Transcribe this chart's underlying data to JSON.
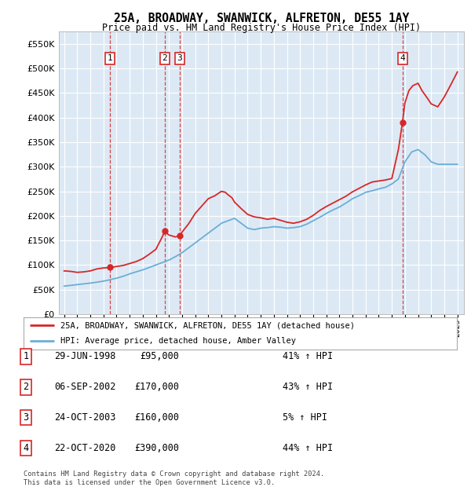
{
  "title": "25A, BROADWAY, SWANWICK, ALFRETON, DE55 1AY",
  "subtitle": "Price paid vs. HM Land Registry's House Price Index (HPI)",
  "background_color": "#dce9f5",
  "plot_bg_color": "#dce9f5",
  "ylim": [
    0,
    575000
  ],
  "yticks": [
    0,
    50000,
    100000,
    150000,
    200000,
    250000,
    300000,
    350000,
    400000,
    450000,
    500000,
    550000
  ],
  "xlim_start": 1994.6,
  "xlim_end": 2025.5,
  "sale_dates": [
    1998.496,
    2002.676,
    2003.814,
    2020.81
  ],
  "sale_prices": [
    95000,
    170000,
    160000,
    390000
  ],
  "sale_labels": [
    "1",
    "2",
    "3",
    "4"
  ],
  "hpi_line_color": "#6baed6",
  "price_line_color": "#d62728",
  "legend_label_red": "25A, BROADWAY, SWANWICK, ALFRETON, DE55 1AY (detached house)",
  "legend_label_blue": "HPI: Average price, detached house, Amber Valley",
  "table_rows": [
    [
      "1",
      "29-JUN-1998",
      "£95,000",
      "41% ↑ HPI"
    ],
    [
      "2",
      "06-SEP-2002",
      "£170,000",
      "43% ↑ HPI"
    ],
    [
      "3",
      "24-OCT-2003",
      "£160,000",
      "5% ↑ HPI"
    ],
    [
      "4",
      "22-OCT-2020",
      "£390,000",
      "44% ↑ HPI"
    ]
  ],
  "footnote": "Contains HM Land Registry data © Crown copyright and database right 2024.\nThis data is licensed under the Open Government Licence v3.0.",
  "hpi_years": [
    1995.0,
    1995.5,
    1996.0,
    1996.5,
    1997.0,
    1997.5,
    1998.0,
    1998.5,
    1999.0,
    1999.5,
    2000.0,
    2000.5,
    2001.0,
    2001.5,
    2002.0,
    2002.5,
    2003.0,
    2003.5,
    2004.0,
    2004.5,
    2005.0,
    2005.5,
    2006.0,
    2006.5,
    2007.0,
    2007.5,
    2008.0,
    2008.5,
    2009.0,
    2009.5,
    2010.0,
    2010.5,
    2011.0,
    2011.5,
    2012.0,
    2012.5,
    2013.0,
    2013.5,
    2014.0,
    2014.5,
    2015.0,
    2015.5,
    2016.0,
    2016.5,
    2017.0,
    2017.5,
    2018.0,
    2018.5,
    2019.0,
    2019.5,
    2020.0,
    2020.5,
    2021.0,
    2021.5,
    2022.0,
    2022.5,
    2023.0,
    2023.5,
    2024.0,
    2024.5,
    2025.0
  ],
  "hpi_values": [
    57000,
    58500,
    60000,
    61500,
    63000,
    65000,
    67000,
    70000,
    73000,
    77000,
    82000,
    86000,
    90000,
    95000,
    100000,
    105000,
    110000,
    117000,
    125000,
    135000,
    145000,
    155000,
    165000,
    175000,
    185000,
    190000,
    195000,
    185000,
    175000,
    172000,
    175000,
    176000,
    178000,
    177000,
    175000,
    176000,
    178000,
    183000,
    190000,
    197000,
    205000,
    212000,
    218000,
    226000,
    235000,
    241000,
    248000,
    251000,
    255000,
    258000,
    265000,
    275000,
    310000,
    330000,
    335000,
    325000,
    310000,
    305000,
    305000,
    305000,
    305000
  ],
  "price_years": [
    1995.0,
    1995.5,
    1996.0,
    1996.5,
    1997.0,
    1997.5,
    1998.0,
    1998.3,
    1998.496,
    1998.7,
    1999.0,
    1999.5,
    2000.0,
    2000.5,
    2001.0,
    2001.5,
    2002.0,
    2002.5,
    2002.676,
    2002.9,
    2003.0,
    2003.5,
    2003.814,
    2004.0,
    2004.5,
    2005.0,
    2005.5,
    2006.0,
    2006.5,
    2007.0,
    2007.3,
    2007.5,
    2007.8,
    2008.0,
    2008.5,
    2009.0,
    2009.5,
    2010.0,
    2010.5,
    2011.0,
    2011.5,
    2012.0,
    2012.5,
    2013.0,
    2013.5,
    2014.0,
    2014.5,
    2015.0,
    2015.5,
    2016.0,
    2016.5,
    2017.0,
    2017.5,
    2018.0,
    2018.5,
    2019.0,
    2019.5,
    2020.0,
    2020.5,
    2020.81,
    2021.0,
    2021.3,
    2021.6,
    2022.0,
    2022.3,
    2022.7,
    2023.0,
    2023.5,
    2024.0,
    2024.5,
    2025.0
  ],
  "price_values": [
    88000,
    87000,
    85000,
    86000,
    88000,
    92000,
    94000,
    94500,
    95000,
    95500,
    97000,
    99000,
    103000,
    107000,
    113000,
    122000,
    132000,
    158000,
    170000,
    163000,
    161000,
    157000,
    160000,
    167000,
    184000,
    205000,
    220000,
    235000,
    241000,
    250000,
    248000,
    243000,
    237000,
    228000,
    215000,
    203000,
    198000,
    196000,
    193000,
    195000,
    191000,
    187000,
    185000,
    188000,
    193000,
    201000,
    211000,
    219000,
    226000,
    233000,
    240000,
    249000,
    256000,
    263000,
    269000,
    271000,
    273000,
    276000,
    335000,
    390000,
    430000,
    455000,
    465000,
    470000,
    455000,
    440000,
    428000,
    422000,
    442000,
    467000,
    493000
  ]
}
